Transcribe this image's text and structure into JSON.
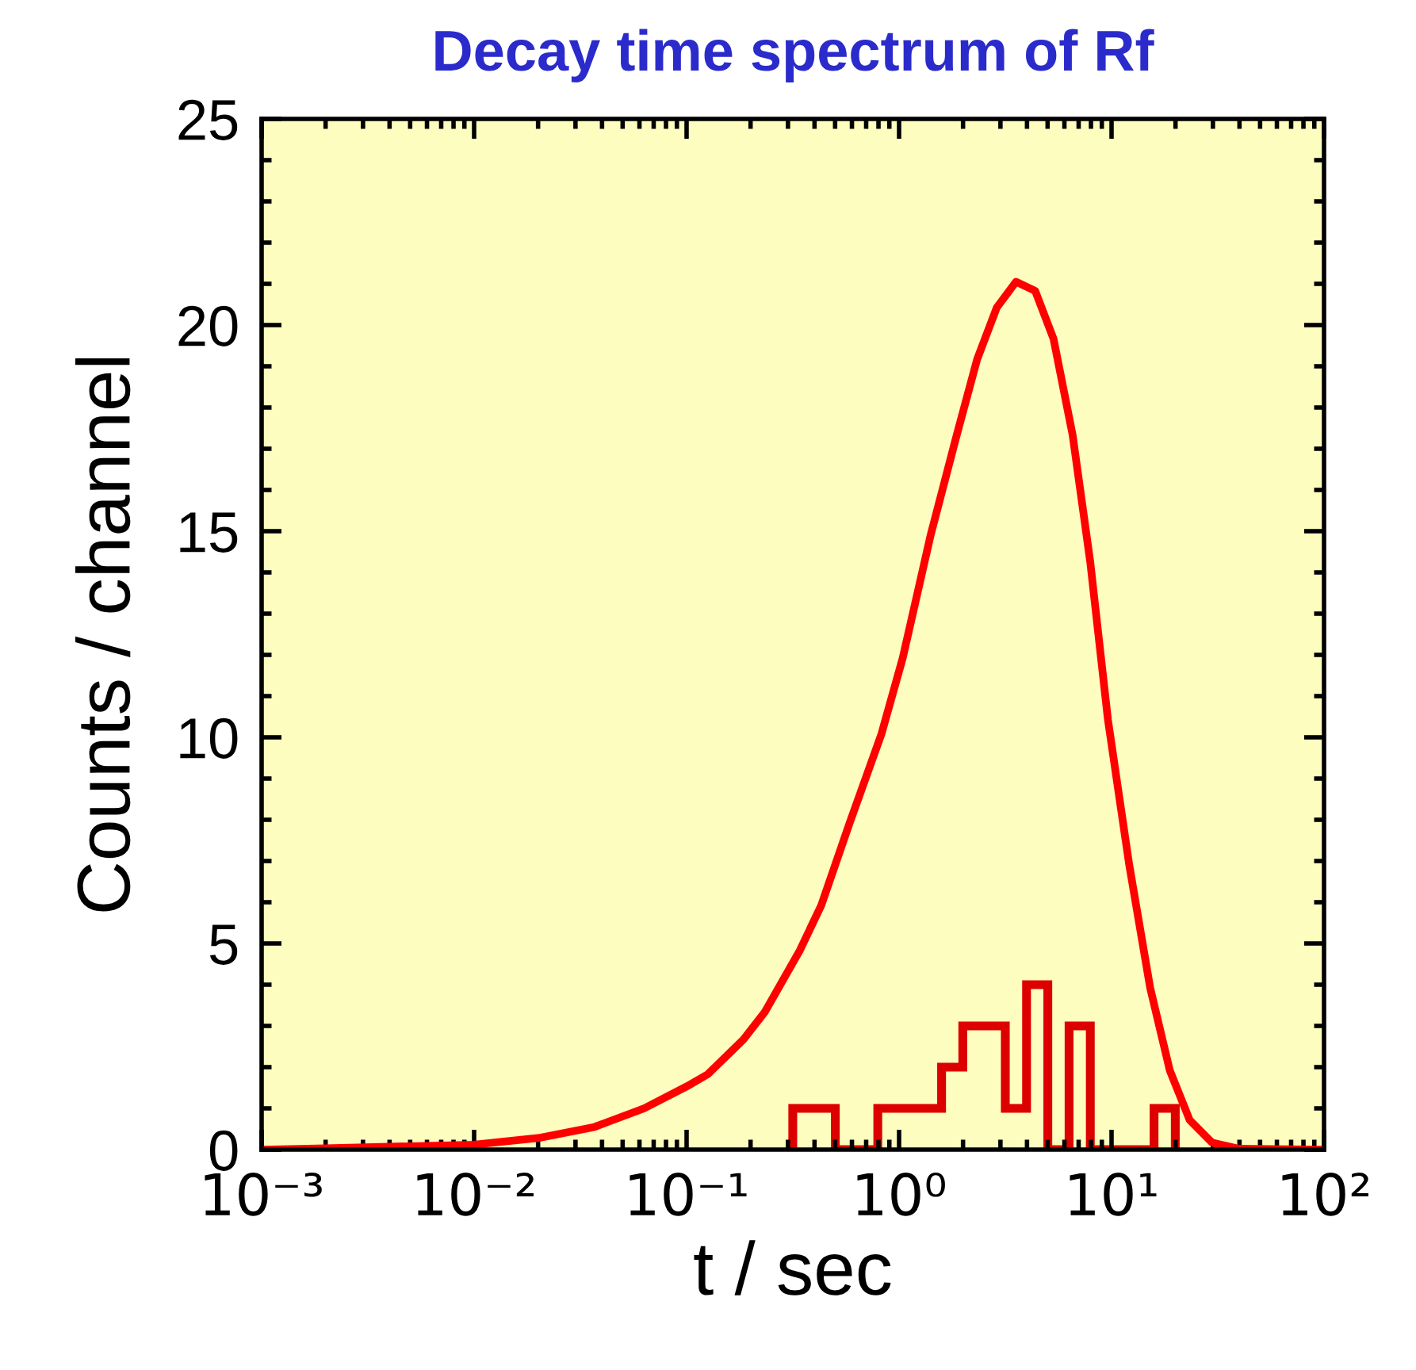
{
  "chart_data": {
    "type": "histogram",
    "title": "Decay time spectrum of Rf",
    "xlabel": "t / sec",
    "ylabel": "Counts / channel",
    "log": "x",
    "xlim": [
      0.001,
      100
    ],
    "xticks": [
      {
        "value": 0.001,
        "label": "10⁻³"
      },
      {
        "value": 0.01,
        "label": "10⁻²"
      },
      {
        "value": 0.1,
        "label": "10⁻¹"
      },
      {
        "value": 1,
        "label": "10⁰"
      },
      {
        "value": 10,
        "label": "10¹"
      },
      {
        "value": 100,
        "label": "10²"
      }
    ],
    "ylim": [
      0,
      25
    ],
    "yticks": [
      0,
      5,
      10,
      15,
      20,
      25
    ],
    "grid": false,
    "series": [
      {
        "color": "#dd0000",
        "bins": [
          0.316,
          0.398,
          0.501,
          0.631,
          0.794,
          1.0,
          1.259,
          1.585,
          1.995,
          2.512,
          3.162,
          3.981,
          5.012,
          6.31,
          7.943,
          10.0,
          12.59,
          15.85,
          19.95
        ],
        "values": [
          1,
          1,
          0,
          0,
          1,
          1,
          1,
          2,
          3,
          3,
          1,
          4,
          0,
          3,
          0,
          0,
          0,
          1
        ]
      },
      {
        "type": "line",
        "color": "#ff0000",
        "x": [
          0.001,
          0.002,
          0.01,
          0.02,
          0.0369,
          0.0631,
          0.1,
          0.126,
          0.185,
          0.233,
          0.341,
          0.43,
          0.585,
          0.826,
          1.04,
          1.41,
          1.85,
          2.33,
          2.88,
          3.55,
          4.37,
          5.33,
          6.56,
          7.94,
          9.62,
          12.1,
          15.2,
          18.8,
          23.3,
          29.7,
          39.8,
          100
        ],
        "values": [
          0,
          0.03,
          0.12,
          0.28,
          0.55,
          1.0,
          1.53,
          1.83,
          2.67,
          3.33,
          4.83,
          5.92,
          7.92,
          10.08,
          11.92,
          14.92,
          17.25,
          19.17,
          20.42,
          21.05,
          20.83,
          19.67,
          17.33,
          14.25,
          10.42,
          6.92,
          3.92,
          1.92,
          0.72,
          0.17,
          0.02,
          0
        ]
      }
    ]
  }
}
